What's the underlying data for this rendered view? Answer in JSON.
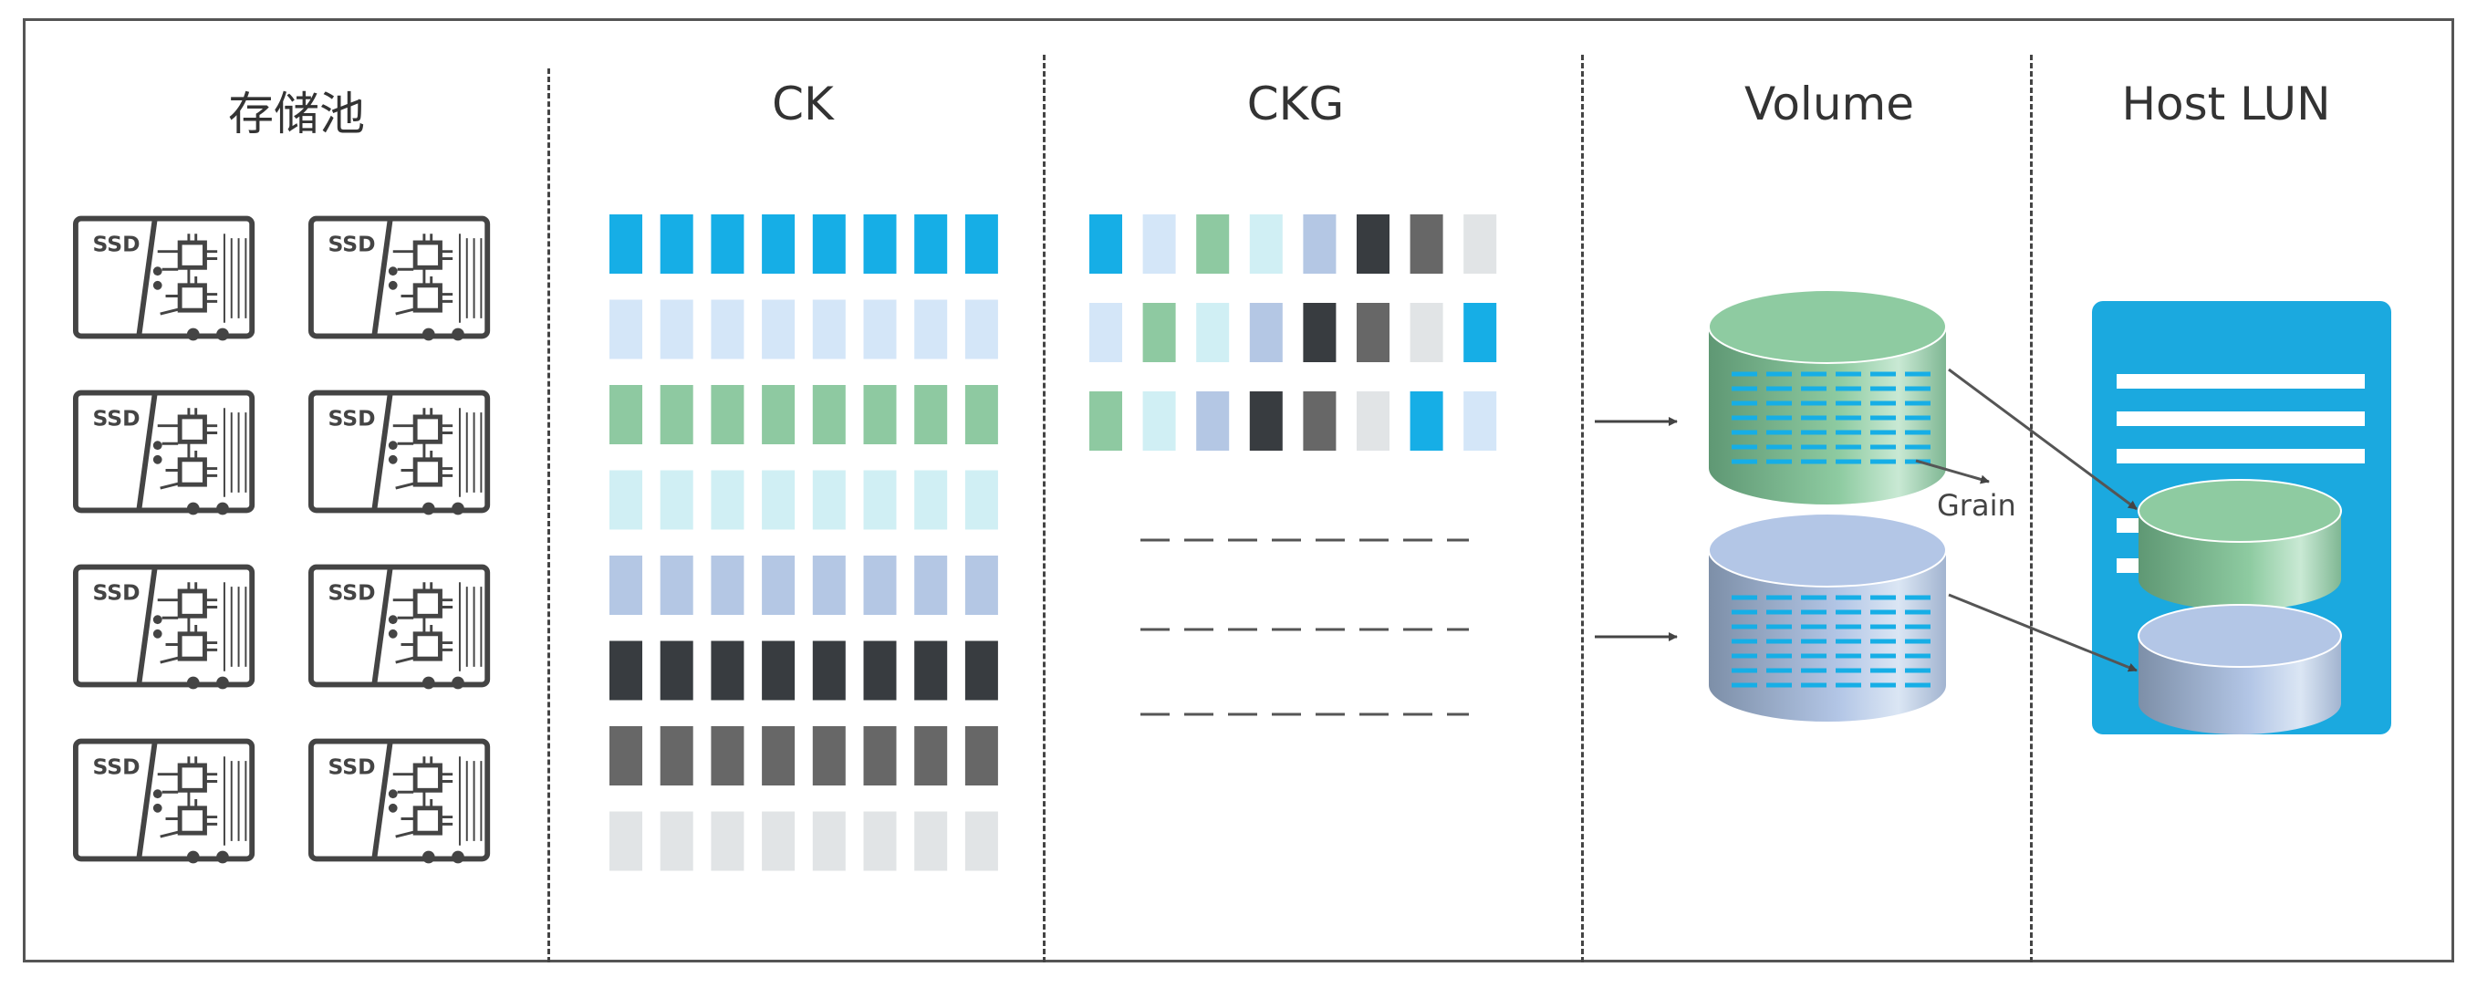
{
  "columns": {
    "pool": {
      "title": "存储池"
    },
    "ck": {
      "title": "CK"
    },
    "ckg": {
      "title": "CKG"
    },
    "volume": {
      "title": "Volume"
    },
    "host_lun": {
      "title": "Host LUN"
    }
  },
  "ssd_label": "SSD",
  "grain_label": "Grain",
  "palette": {
    "blue": "#16aee6",
    "pale_blue": "#d4e6f8",
    "green": "#8ec9a1",
    "pale_cyan": "#d0eff4",
    "lavender": "#b4c7e4",
    "dark": "#383c40",
    "gray": "#676767",
    "light_gray": "#e1e4e6",
    "host_panel": "#1ba9df",
    "volume_green": "#8ecba1",
    "volume_blue": "#b3c6e6"
  },
  "icon": "ssd-drive-icon"
}
